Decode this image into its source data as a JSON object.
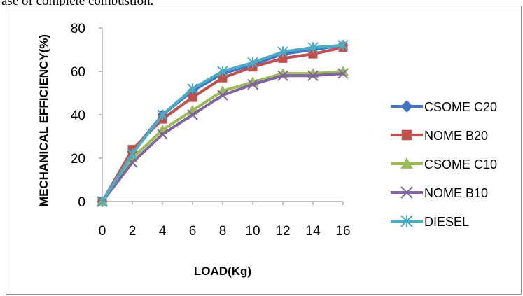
{
  "page": {
    "top_text": "ase of complete combustion."
  },
  "chart_data": {
    "type": "line",
    "title": "",
    "xlabel": "LOAD(Kg)",
    "ylabel": "MECHANICAL EFFICIENCY(%)",
    "categories": [
      "0",
      "2",
      "4",
      "6",
      "8",
      "10",
      "12",
      "14",
      "16"
    ],
    "x": [
      0,
      2,
      4,
      6,
      8,
      10,
      12,
      14,
      16
    ],
    "ylim": [
      0,
      80
    ],
    "yticks": [
      0,
      20,
      40,
      60,
      80
    ],
    "grid": false,
    "legend_position": "right",
    "series": [
      {
        "name": "CSOME C20",
        "color": "#4472C4",
        "marker": "diamond",
        "values": [
          0,
          23,
          40,
          51,
          59,
          63,
          68,
          70,
          72
        ]
      },
      {
        "name": "NOME B20",
        "color": "#C0504D",
        "marker": "square",
        "values": [
          0,
          24,
          38,
          48,
          57,
          62,
          66,
          68,
          71
        ]
      },
      {
        "name": "CSOME C10",
        "color": "#9BBB59",
        "marker": "triangle",
        "values": [
          0,
          20,
          33,
          42,
          51,
          55,
          59,
          59,
          60
        ]
      },
      {
        "name": "NOME B10",
        "color": "#8064A2",
        "marker": "x",
        "values": [
          0,
          18,
          31,
          40,
          49,
          54,
          58,
          58,
          59
        ]
      },
      {
        "name": "DIESEL",
        "color": "#4BACC6",
        "marker": "star",
        "values": [
          0,
          22,
          40,
          52,
          60,
          64,
          69,
          71,
          72
        ]
      }
    ]
  }
}
